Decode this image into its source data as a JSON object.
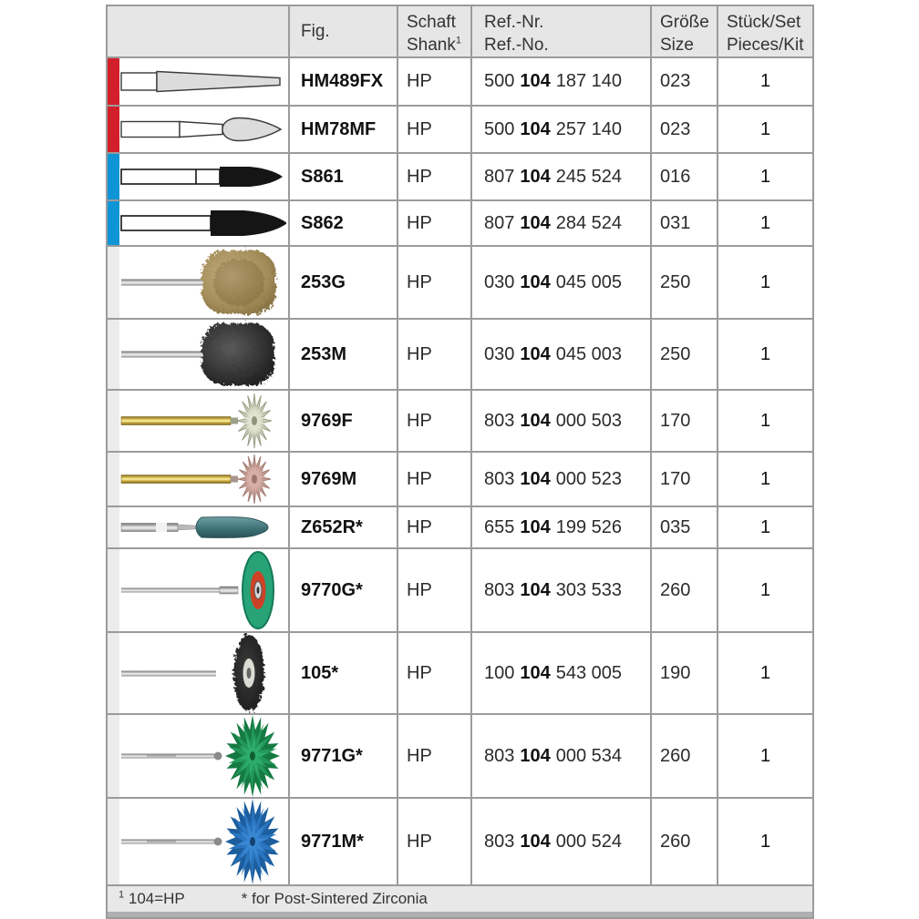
{
  "header": {
    "fig": "Fig.",
    "shank_line1": "Schaft",
    "shank_line2": "Shank",
    "shank_sup": "1",
    "ref_line1": "Ref.-Nr.",
    "ref_line2": "Ref.-No.",
    "size_line1": "Größe",
    "size_line2": "Size",
    "pieces_line1": "Stück/Set",
    "pieces_line2": "Pieces/Kit"
  },
  "rows": [
    {
      "fig": "HM489FX",
      "shank": "HP",
      "ref_a": "500",
      "ref_b": "104",
      "ref_c": "187 140",
      "size": "023",
      "pieces": "1",
      "category_color": "#d1202a",
      "image": "tapered-carbide-bur"
    },
    {
      "fig": "HM78MF",
      "shank": "HP",
      "ref_a": "500",
      "ref_b": "104",
      "ref_c": "257 140",
      "size": "023",
      "pieces": "1",
      "category_color": "#d1202a",
      "image": "egg-carbide-bur"
    },
    {
      "fig": "S861",
      "shank": "HP",
      "ref_a": "807",
      "ref_b": "104",
      "ref_c": "245 524",
      "size": "016",
      "pieces": "1",
      "category_color": "#0e95d6",
      "image": "black-pointed-bur-small"
    },
    {
      "fig": "S862",
      "shank": "HP",
      "ref_a": "807",
      "ref_b": "104",
      "ref_c": "284 524",
      "size": "031",
      "pieces": "1",
      "category_color": "#0e95d6",
      "image": "black-pointed-bur-large"
    },
    {
      "fig": "253G",
      "shank": "HP",
      "ref_a": "030",
      "ref_b": "104",
      "ref_c": "045 005",
      "size": "250",
      "pieces": "1",
      "category_color": "#ececec",
      "image": "brass-brush-wheel"
    },
    {
      "fig": "253M",
      "shank": "HP",
      "ref_a": "030",
      "ref_b": "104",
      "ref_c": "045 003",
      "size": "250",
      "pieces": "1",
      "category_color": "#ececec",
      "image": "black-brush-wheel"
    },
    {
      "fig": "9769F",
      "shank": "HP",
      "ref_a": "803",
      "ref_b": "104",
      "ref_c": "000 503",
      "size": "170",
      "pieces": "1",
      "category_color": "#ececec",
      "image": "white-star-polisher-gold-shank"
    },
    {
      "fig": "9769M",
      "shank": "HP",
      "ref_a": "803",
      "ref_b": "104",
      "ref_c": "000 523",
      "size": "170",
      "pieces": "1",
      "category_color": "#ececec",
      "image": "pink-star-polisher-gold-shank"
    },
    {
      "fig": "Z652R*",
      "shank": "HP",
      "ref_a": "655",
      "ref_b": "104",
      "ref_c": "199 526",
      "size": "035",
      "pieces": "1",
      "category_color": "#ececec",
      "image": "teal-grinding-stone"
    },
    {
      "fig": "9770G*",
      "shank": "HP",
      "ref_a": "803",
      "ref_b": "104",
      "ref_c": "303 533",
      "size": "260",
      "pieces": "1",
      "category_color": "#ececec",
      "image": "green-disc-red-center"
    },
    {
      "fig": "105*",
      "shank": "HP",
      "ref_a": "100",
      "ref_b": "104",
      "ref_c": "543 005",
      "size": "190",
      "pieces": "1",
      "category_color": "#ececec",
      "image": "black-bristle-wheel"
    },
    {
      "fig": "9771G*",
      "shank": "HP",
      "ref_a": "803",
      "ref_b": "104",
      "ref_c": "000 534",
      "size": "260",
      "pieces": "1",
      "category_color": "#ececec",
      "image": "green-spiral-wheel"
    },
    {
      "fig": "9771M*",
      "shank": "HP",
      "ref_a": "803",
      "ref_b": "104",
      "ref_c": "000 524",
      "size": "260",
      "pieces": "1",
      "category_color": "#ececec",
      "image": "blue-spiral-wheel"
    }
  ],
  "footer": {
    "sup": "1",
    "note_shank": "104=HP",
    "note_zirconia": "* for Post-Sintered Zirconia"
  },
  "colors": {
    "category_red": "#d1202a",
    "category_blue": "#0e95d6",
    "header_bg": "#e6e6e6",
    "grid_line": "#9b9b9b",
    "footer_bg": "#e8e8e8"
  }
}
